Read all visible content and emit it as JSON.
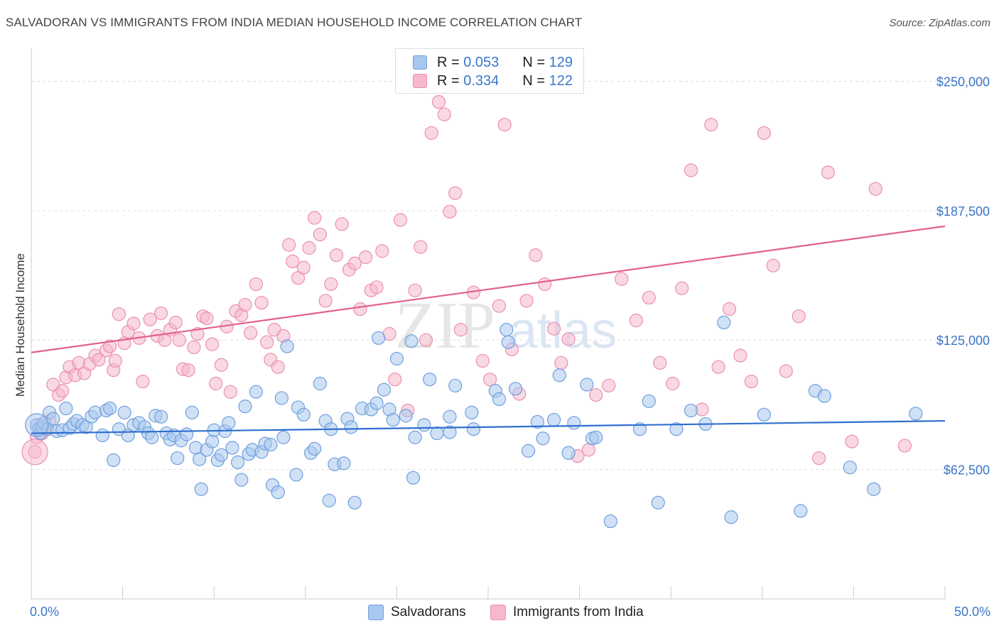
{
  "title": "SALVADORAN VS IMMIGRANTS FROM INDIA MEDIAN HOUSEHOLD INCOME CORRELATION CHART",
  "source": "Source: ZipAtlas.com",
  "watermark": {
    "zip": "ZIP",
    "atlas": "atlas"
  },
  "legend": {
    "rows": [
      {
        "r_label": "R =",
        "r_value": "0.053",
        "n_label": "N =",
        "n_value": "129"
      },
      {
        "r_label": "R =",
        "r_value": "0.334",
        "n_label": "N =",
        "n_value": "122"
      }
    ]
  },
  "bottom_legend": [
    "Salvadorans",
    "Immigrants from India"
  ],
  "colors": {
    "blue_fill": "#a9c8ef",
    "blue_stroke": "#6f9fdc",
    "blue_line": "#2f6fcf",
    "pink_fill": "#f6b8cc",
    "pink_stroke": "#eb8fae",
    "pink_line": "#e0608e",
    "tick_text": "#3b76c8",
    "grid": "#dddddd"
  },
  "chart_data": {
    "type": "scatter",
    "title": "SALVADORAN VS IMMIGRANTS FROM INDIA MEDIAN HOUSEHOLD INCOME CORRELATION CHART",
    "xlabel": "",
    "ylabel": "Median Household Income",
    "xlim": [
      0,
      50
    ],
    "ylim": [
      0,
      262500
    ],
    "x_tick_labels": [
      "0.0%",
      "50.0%"
    ],
    "y_ticks": [
      62500,
      125000,
      187500,
      250000
    ],
    "y_tick_labels": [
      "$62,500",
      "$125,000",
      "$187,500",
      "$250,000"
    ],
    "grid": true,
    "legend_position": "top-center",
    "series": [
      {
        "name": "Salvadorans",
        "r": 0.053,
        "n": 129,
        "trend": {
          "x": [
            0,
            50
          ],
          "y": [
            80000,
            86000
          ]
        },
        "points": [
          [
            0.3,
            84000
          ],
          [
            0.4,
            82000
          ],
          [
            0.5,
            80000
          ],
          [
            0.6,
            83000
          ],
          [
            0.7,
            85000
          ],
          [
            0.9,
            82000
          ],
          [
            1.0,
            90000
          ],
          [
            1.2,
            87000
          ],
          [
            1.4,
            81000
          ],
          [
            1.7,
            81500
          ],
          [
            1.9,
            92000
          ],
          [
            2.1,
            82500
          ],
          [
            2.3,
            84500
          ],
          [
            2.5,
            86000
          ],
          [
            2.8,
            84000
          ],
          [
            3.0,
            83000
          ],
          [
            3.3,
            88000
          ],
          [
            3.5,
            90000
          ],
          [
            3.9,
            79000
          ],
          [
            4.1,
            91000
          ],
          [
            4.3,
            92000
          ],
          [
            4.5,
            67000
          ],
          [
            4.8,
            82000
          ],
          [
            5.1,
            90000
          ],
          [
            5.3,
            79000
          ],
          [
            5.6,
            84000
          ],
          [
            5.9,
            85000
          ],
          [
            6.2,
            83000
          ],
          [
            6.4,
            80000
          ],
          [
            6.6,
            78000
          ],
          [
            6.8,
            88500
          ],
          [
            7.1,
            88000
          ],
          [
            7.4,
            80000
          ],
          [
            7.6,
            77000
          ],
          [
            7.8,
            79000
          ],
          [
            8.0,
            68000
          ],
          [
            8.2,
            76500
          ],
          [
            8.5,
            79500
          ],
          [
            8.8,
            90000
          ],
          [
            9.0,
            73000
          ],
          [
            9.2,
            67500
          ],
          [
            9.3,
            53000
          ],
          [
            9.6,
            72000
          ],
          [
            9.9,
            76000
          ],
          [
            10.0,
            81500
          ],
          [
            10.2,
            67000
          ],
          [
            10.4,
            69500
          ],
          [
            10.6,
            81000
          ],
          [
            10.8,
            85000
          ],
          [
            11.0,
            73000
          ],
          [
            11.3,
            66000
          ],
          [
            11.5,
            57500
          ],
          [
            11.7,
            93000
          ],
          [
            11.9,
            70000
          ],
          [
            12.1,
            72000
          ],
          [
            12.3,
            100000
          ],
          [
            12.6,
            71000
          ],
          [
            12.8,
            75000
          ],
          [
            13.1,
            74500
          ],
          [
            13.2,
            55000
          ],
          [
            13.5,
            51500
          ],
          [
            13.7,
            97000
          ],
          [
            13.8,
            78000
          ],
          [
            14.0,
            122000
          ],
          [
            14.5,
            60000
          ],
          [
            14.6,
            92500
          ],
          [
            14.9,
            89000
          ],
          [
            15.3,
            70500
          ],
          [
            15.5,
            72500
          ],
          [
            15.8,
            104000
          ],
          [
            16.1,
            86000
          ],
          [
            16.3,
            47500
          ],
          [
            16.4,
            82000
          ],
          [
            16.6,
            65000
          ],
          [
            17.1,
            65500
          ],
          [
            17.3,
            87000
          ],
          [
            17.5,
            83000
          ],
          [
            17.7,
            46500
          ],
          [
            18.1,
            92000
          ],
          [
            18.6,
            91500
          ],
          [
            18.9,
            94500
          ],
          [
            19.0,
            126000
          ],
          [
            19.3,
            101000
          ],
          [
            19.6,
            91500
          ],
          [
            19.8,
            86500
          ],
          [
            20.0,
            116000
          ],
          [
            20.5,
            88500
          ],
          [
            20.8,
            124500
          ],
          [
            20.9,
            58500
          ],
          [
            21.0,
            78000
          ],
          [
            21.5,
            84000
          ],
          [
            21.8,
            106000
          ],
          [
            22.2,
            80000
          ],
          [
            22.9,
            80500
          ],
          [
            22.9,
            88000
          ],
          [
            23.2,
            103000
          ],
          [
            24.1,
            90000
          ],
          [
            24.2,
            82000
          ],
          [
            25.4,
            100500
          ],
          [
            25.6,
            96500
          ],
          [
            26.0,
            130000
          ],
          [
            26.1,
            124000
          ],
          [
            26.5,
            101500
          ],
          [
            27.2,
            71500
          ],
          [
            27.7,
            85500
          ],
          [
            28.0,
            77500
          ],
          [
            28.6,
            86500
          ],
          [
            28.9,
            108000
          ],
          [
            29.4,
            70500
          ],
          [
            29.7,
            85000
          ],
          [
            30.4,
            103500
          ],
          [
            30.7,
            77500
          ],
          [
            30.9,
            78000
          ],
          [
            31.7,
            37500
          ],
          [
            33.3,
            82000
          ],
          [
            33.8,
            95500
          ],
          [
            34.3,
            46500
          ],
          [
            35.3,
            82000
          ],
          [
            36.1,
            91000
          ],
          [
            36.9,
            84500
          ],
          [
            37.9,
            133500
          ],
          [
            38.3,
            39500
          ],
          [
            40.1,
            89000
          ],
          [
            42.1,
            42500
          ],
          [
            42.9,
            100500
          ],
          [
            44.8,
            63500
          ],
          [
            46.1,
            53000
          ],
          [
            43.4,
            98000
          ],
          [
            48.4,
            89500
          ]
        ]
      },
      {
        "name": "Immigrants from India",
        "r": 0.334,
        "n": 122,
        "trend": {
          "x": [
            0,
            50
          ],
          "y": [
            119000,
            180000
          ]
        },
        "points": [
          [
            0.2,
            71000
          ],
          [
            0.3,
            78000
          ],
          [
            0.5,
            84000
          ],
          [
            0.6,
            80000
          ],
          [
            0.8,
            82000
          ],
          [
            1.0,
            86000
          ],
          [
            1.2,
            103500
          ],
          [
            1.5,
            98500
          ],
          [
            1.7,
            100500
          ],
          [
            1.9,
            107000
          ],
          [
            2.1,
            112000
          ],
          [
            2.4,
            108000
          ],
          [
            2.6,
            114000
          ],
          [
            2.9,
            109000
          ],
          [
            3.2,
            113500
          ],
          [
            3.5,
            117500
          ],
          [
            3.7,
            115500
          ],
          [
            4.1,
            120000
          ],
          [
            4.3,
            122000
          ],
          [
            4.5,
            110500
          ],
          [
            4.6,
            115000
          ],
          [
            4.8,
            137500
          ],
          [
            5.1,
            123500
          ],
          [
            5.3,
            129000
          ],
          [
            5.6,
            133000
          ],
          [
            5.9,
            126000
          ],
          [
            6.1,
            105000
          ],
          [
            6.5,
            135000
          ],
          [
            6.9,
            127000
          ],
          [
            7.1,
            138000
          ],
          [
            7.3,
            125000
          ],
          [
            7.6,
            130000
          ],
          [
            7.9,
            133500
          ],
          [
            8.1,
            125000
          ],
          [
            8.3,
            111000
          ],
          [
            8.6,
            110500
          ],
          [
            8.9,
            121500
          ],
          [
            9.1,
            128000
          ],
          [
            9.4,
            136500
          ],
          [
            9.6,
            135500
          ],
          [
            9.9,
            123000
          ],
          [
            10.1,
            104000
          ],
          [
            10.4,
            113000
          ],
          [
            10.7,
            131500
          ],
          [
            10.9,
            100000
          ],
          [
            11.2,
            139000
          ],
          [
            11.5,
            137000
          ],
          [
            11.7,
            142000
          ],
          [
            12.0,
            128500
          ],
          [
            12.3,
            152000
          ],
          [
            12.6,
            143000
          ],
          [
            12.9,
            124000
          ],
          [
            13.1,
            115500
          ],
          [
            13.3,
            130000
          ],
          [
            13.5,
            112000
          ],
          [
            13.8,
            127000
          ],
          [
            14.1,
            171000
          ],
          [
            14.3,
            163000
          ],
          [
            14.6,
            155000
          ],
          [
            14.9,
            160000
          ],
          [
            15.2,
            169500
          ],
          [
            15.5,
            184000
          ],
          [
            15.8,
            176000
          ],
          [
            16.1,
            144000
          ],
          [
            16.4,
            152000
          ],
          [
            16.7,
            166000
          ],
          [
            17.0,
            181000
          ],
          [
            17.4,
            159000
          ],
          [
            17.7,
            162000
          ],
          [
            18.0,
            140000
          ],
          [
            18.3,
            165000
          ],
          [
            18.6,
            149000
          ],
          [
            18.9,
            150500
          ],
          [
            19.2,
            168000
          ],
          [
            19.6,
            128000
          ],
          [
            19.9,
            106000
          ],
          [
            20.2,
            183000
          ],
          [
            20.6,
            91000
          ],
          [
            21.0,
            149000
          ],
          [
            21.3,
            170000
          ],
          [
            21.6,
            125000
          ],
          [
            21.9,
            225000
          ],
          [
            22.3,
            240000
          ],
          [
            22.6,
            234000
          ],
          [
            22.9,
            187000
          ],
          [
            23.2,
            196000
          ],
          [
            23.5,
            130000
          ],
          [
            24.2,
            148000
          ],
          [
            24.7,
            115000
          ],
          [
            25.1,
            106000
          ],
          [
            25.6,
            141500
          ],
          [
            25.9,
            229000
          ],
          [
            26.3,
            120500
          ],
          [
            26.7,
            99000
          ],
          [
            27.1,
            144000
          ],
          [
            27.6,
            166000
          ],
          [
            28.1,
            152000
          ],
          [
            28.6,
            130500
          ],
          [
            29.0,
            114000
          ],
          [
            29.4,
            125500
          ],
          [
            29.9,
            69000
          ],
          [
            30.5,
            72000
          ],
          [
            30.9,
            98500
          ],
          [
            31.6,
            103000
          ],
          [
            32.3,
            154500
          ],
          [
            33.1,
            134500
          ],
          [
            33.8,
            145500
          ],
          [
            34.4,
            114000
          ],
          [
            35.1,
            104000
          ],
          [
            35.6,
            150000
          ],
          [
            36.1,
            207000
          ],
          [
            36.7,
            91500
          ],
          [
            37.2,
            229000
          ],
          [
            37.6,
            112000
          ],
          [
            38.2,
            140000
          ],
          [
            38.8,
            117500
          ],
          [
            39.4,
            105000
          ],
          [
            40.1,
            225000
          ],
          [
            40.6,
            161000
          ],
          [
            41.3,
            110000
          ],
          [
            42.0,
            136500
          ],
          [
            43.1,
            68000
          ],
          [
            44.9,
            76000
          ],
          [
            46.2,
            198000
          ],
          [
            47.8,
            74000
          ],
          [
            43.6,
            206000
          ]
        ]
      }
    ]
  }
}
